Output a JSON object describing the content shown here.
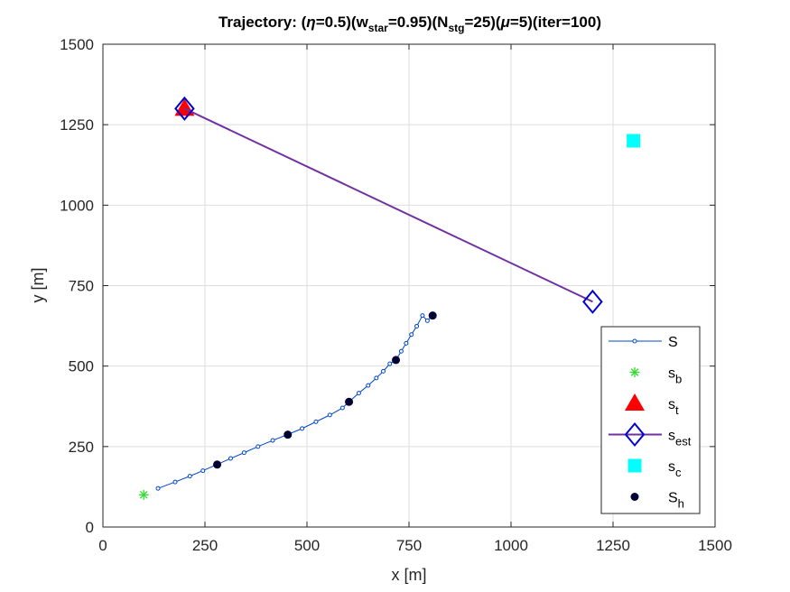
{
  "chart_data": {
    "type": "scatter",
    "title": {
      "parts": [
        {
          "t": "Trajectory: (",
          "s": "normal"
        },
        {
          "t": "η",
          "s": "italic"
        },
        {
          "t": "=0.5)(w",
          "s": "normal"
        },
        {
          "t": "star",
          "s": "sub"
        },
        {
          "t": "=0.95)(N",
          "s": "normal"
        },
        {
          "t": "stg",
          "s": "sub"
        },
        {
          "t": "=25)(",
          "s": "normal"
        },
        {
          "t": "μ",
          "s": "italic"
        },
        {
          "t": "=5)(iter=100)",
          "s": "normal"
        }
      ]
    },
    "xlabel": "x [m]",
    "ylabel": "y [m]",
    "xlim": [
      0,
      1500
    ],
    "ylim": [
      0,
      1500
    ],
    "xticks": [
      0,
      250,
      500,
      750,
      1000,
      1250,
      1500
    ],
    "yticks": [
      0,
      250,
      500,
      750,
      1000,
      1250,
      1500
    ],
    "grid": true,
    "legend_position": "bottom-right",
    "series": [
      {
        "name": "S",
        "sub": "",
        "marker": "small-circle",
        "line": true,
        "color": "#0047c8",
        "x": [
          135,
          177,
          213,
          245,
          279,
          313,
          346,
          380,
          416,
          452,
          488,
          522,
          556,
          587,
          603,
          627,
          650,
          670,
          687,
          703,
          718,
          731,
          743,
          756,
          769,
          783,
          795,
          808
        ],
        "y": [
          120,
          140,
          158,
          175,
          194,
          213,
          231,
          250,
          269,
          287,
          306,
          327,
          348,
          370,
          389,
          416,
          440,
          463,
          484,
          507,
          519,
          546,
          571,
          598,
          624,
          657,
          641,
          657
        ]
      },
      {
        "name": "s",
        "sub": "b",
        "marker": "asterisk",
        "line": false,
        "color": "#2ddf2d",
        "x": [
          100
        ],
        "y": [
          100
        ]
      },
      {
        "name": "s",
        "sub": "t",
        "marker": "triangle",
        "line": false,
        "color": "#ff0000",
        "x": [
          200
        ],
        "y": [
          1300
        ]
      },
      {
        "name": "s",
        "sub": "est",
        "marker": "diamond",
        "line": true,
        "color": "#7030a0",
        "marker_color": "#0000d0",
        "x": [
          200,
          1200
        ],
        "y": [
          1300,
          700
        ]
      },
      {
        "name": "s",
        "sub": "c",
        "marker": "square",
        "line": false,
        "color": "#00ffff",
        "x": [
          1300
        ],
        "y": [
          1200
        ]
      },
      {
        "name": "S",
        "sub": "h",
        "marker": "dot",
        "line": false,
        "color": "#000033",
        "x": [
          280,
          453,
          603,
          718,
          808
        ],
        "y": [
          194,
          287,
          389,
          519,
          657
        ]
      }
    ]
  }
}
